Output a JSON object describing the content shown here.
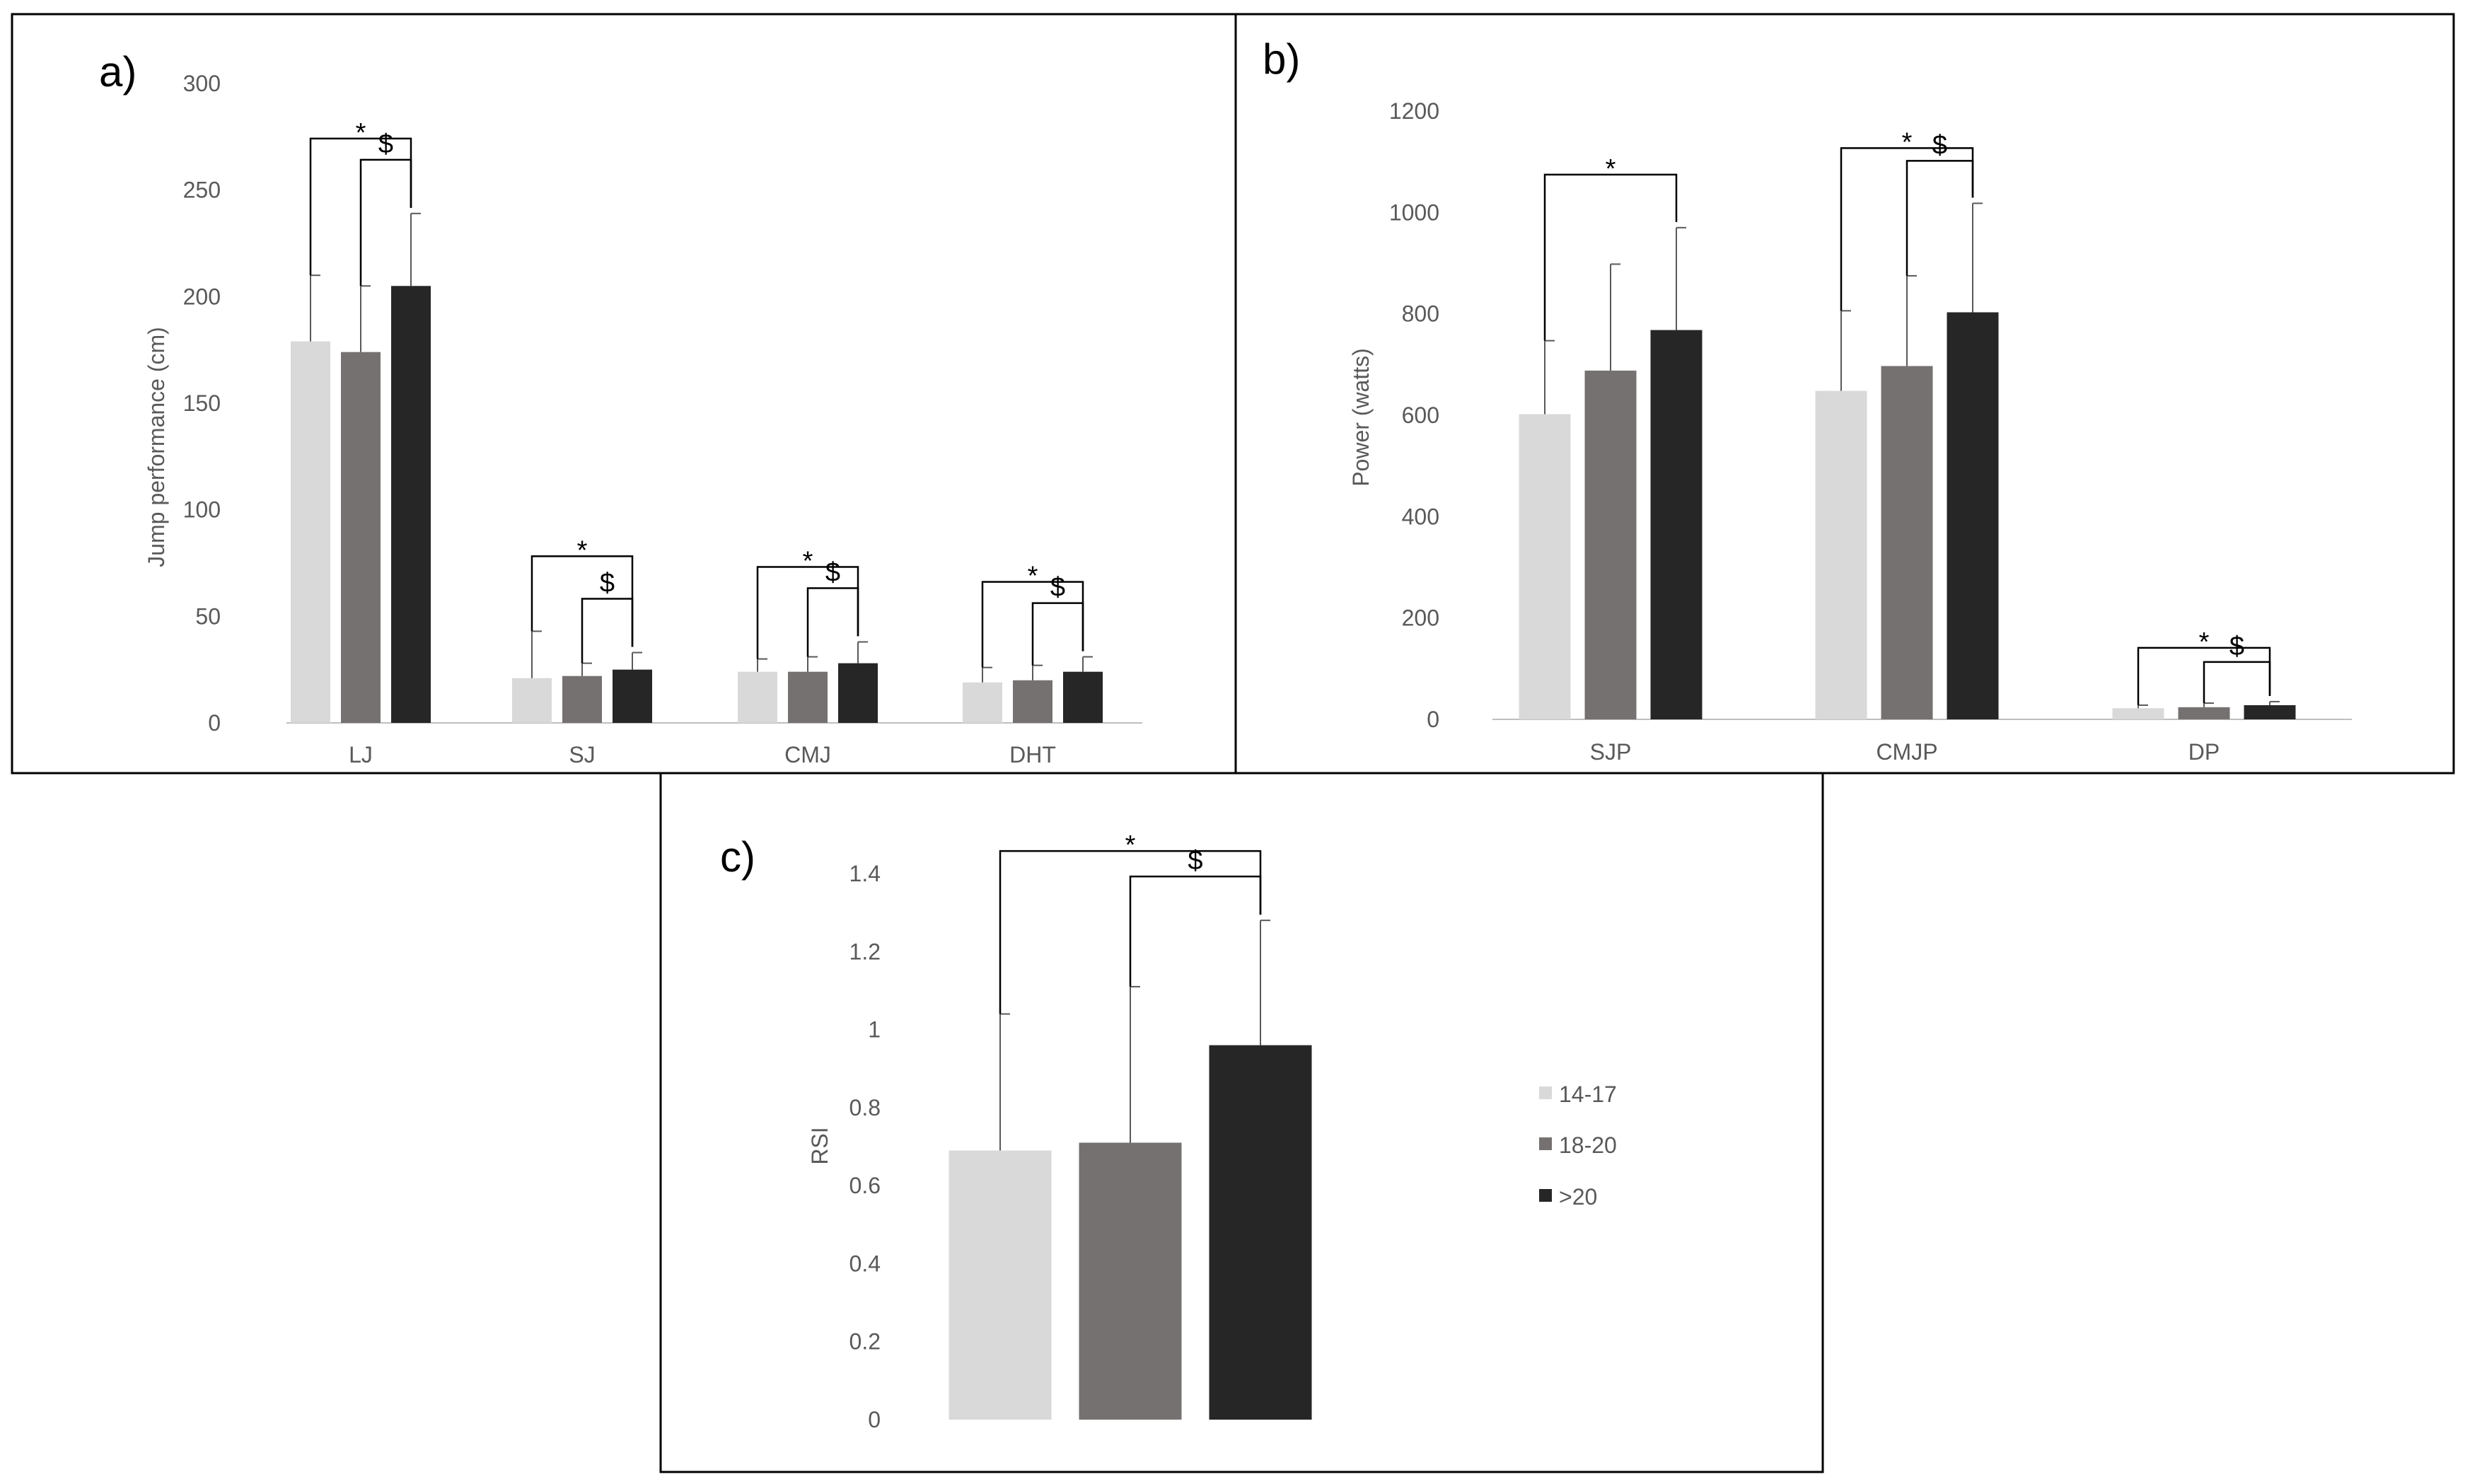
{
  "colors": {
    "14-17": "#d9d9d9",
    "18-20": "#767171",
    ">20": "#262626",
    "axis": "#bfbfbf",
    "bracket": "#000000",
    "errorbar": "#595959"
  },
  "legend": {
    "items": [
      {
        "key": "14-17",
        "label": "14-17"
      },
      {
        "key": "18-20",
        "label": "18-20"
      },
      {
        "key": ">20",
        "label": ">20"
      }
    ]
  },
  "chart_data": [
    {
      "panel_label": "a)",
      "type": "bar",
      "ylabel": "Jump performance (cm)",
      "ylim": [
        0,
        300
      ],
      "yticks": [
        0,
        50,
        100,
        150,
        200,
        250,
        300
      ],
      "ytick_labels": [
        "0",
        "50",
        "100",
        "150",
        "200",
        "250",
        "300"
      ],
      "categories": [
        "LJ",
        "SJ",
        "CMJ",
        "DHT"
      ],
      "series": [
        {
          "name": "14-17",
          "values": [
            179,
            21,
            24,
            19
          ],
          "errors": [
            31,
            22,
            6,
            7
          ]
        },
        {
          "name": "18-20",
          "values": [
            174,
            22,
            24,
            20
          ],
          "errors": [
            31,
            6,
            7,
            7
          ]
        },
        {
          "name": ">20",
          "values": [
            205,
            25,
            28,
            24
          ],
          "errors": [
            34,
            8,
            10,
            7
          ]
        }
      ],
      "significance": [
        {
          "category": "LJ",
          "from": "14-17",
          "to": ">20",
          "marker": "*"
        },
        {
          "category": "LJ",
          "from": "18-20",
          "to": ">20",
          "marker": "$"
        },
        {
          "category": "SJ",
          "from": "14-17",
          "to": ">20",
          "marker": "*"
        },
        {
          "category": "SJ",
          "from": "18-20",
          "to": ">20",
          "marker": "$"
        },
        {
          "category": "CMJ",
          "from": "14-17",
          "to": ">20",
          "marker": "*"
        },
        {
          "category": "CMJ",
          "from": "18-20",
          "to": ">20",
          "marker": "$"
        },
        {
          "category": "DHT",
          "from": "14-17",
          "to": ">20",
          "marker": "*"
        },
        {
          "category": "DHT",
          "from": "18-20",
          "to": ">20",
          "marker": "$"
        }
      ]
    },
    {
      "panel_label": "b)",
      "type": "bar",
      "ylabel": "Power (watts)",
      "ylim": [
        0,
        1200
      ],
      "yticks": [
        0,
        200,
        400,
        600,
        800,
        1000,
        1200
      ],
      "ytick_labels": [
        "0",
        "200",
        "400",
        "600",
        "800",
        "1000",
        "1200"
      ],
      "categories": [
        "SJP",
        "CMJP",
        "DP"
      ],
      "series": [
        {
          "name": "14-17",
          "values": [
            602,
            648,
            22
          ],
          "errors": [
            145,
            158,
            6
          ]
        },
        {
          "name": "18-20",
          "values": [
            688,
            697,
            24
          ],
          "errors": [
            210,
            178,
            8
          ]
        },
        {
          "name": ">20",
          "values": [
            768,
            803,
            28
          ],
          "errors": [
            202,
            215,
            7
          ]
        }
      ],
      "significance": [
        {
          "category": "SJP",
          "from": "14-17",
          "to": ">20",
          "marker": "*"
        },
        {
          "category": "CMJP",
          "from": "14-17",
          "to": ">20",
          "marker": "*"
        },
        {
          "category": "CMJP",
          "from": "18-20",
          "to": ">20",
          "marker": "$"
        },
        {
          "category": "DP",
          "from": "14-17",
          "to": ">20",
          "marker": "*"
        },
        {
          "category": "DP",
          "from": "18-20",
          "to": ">20",
          "marker": "$"
        }
      ]
    },
    {
      "panel_label": "c)",
      "type": "bar",
      "ylabel": "RSI",
      "ylim": [
        0,
        1.4
      ],
      "yticks": [
        0,
        0.2,
        0.4,
        0.6,
        0.8,
        1,
        1.2,
        1.4
      ],
      "ytick_labels": [
        "0",
        "0.2",
        "0.4",
        "0.6",
        "0.8",
        "1",
        "1.2",
        "1.4"
      ],
      "categories": [
        ""
      ],
      "series": [
        {
          "name": "14-17",
          "values": [
            0.69
          ],
          "errors": [
            0.35
          ]
        },
        {
          "name": "18-20",
          "values": [
            0.71
          ],
          "errors": [
            0.4
          ]
        },
        {
          "name": ">20",
          "values": [
            0.96
          ],
          "errors": [
            0.32
          ]
        }
      ],
      "significance": [
        {
          "category": "",
          "from": "14-17",
          "to": ">20",
          "marker": "*"
        },
        {
          "category": "",
          "from": "18-20",
          "to": ">20",
          "marker": "$"
        }
      ]
    }
  ]
}
